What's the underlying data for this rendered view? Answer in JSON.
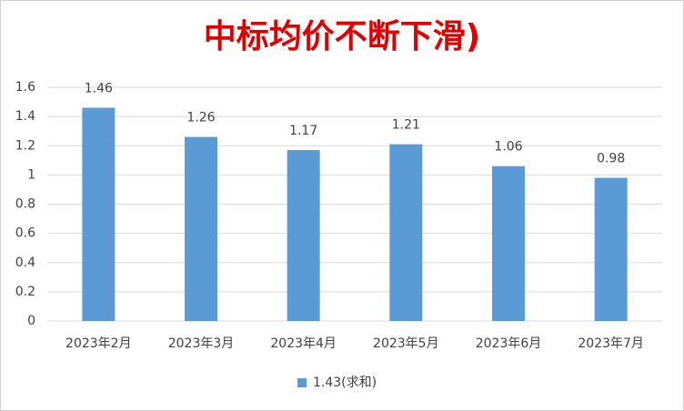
{
  "chart_data": {
    "type": "bar",
    "title": "中标均价不断下滑)",
    "categories": [
      "2023年2月",
      "2023年3月",
      "2023年4月",
      "2023年5月",
      "2023年6月",
      "2023年7月"
    ],
    "series": [
      {
        "name": "1.43(求和)",
        "color": "#5b9bd5",
        "values": [
          1.46,
          1.26,
          1.17,
          1.21,
          1.06,
          0.98
        ]
      }
    ],
    "ylim": [
      0,
      1.6
    ],
    "yticks": [
      0,
      0.2,
      0.4,
      0.6,
      0.8,
      1,
      1.2,
      1.4,
      1.6
    ],
    "grid": true,
    "legend": "bottom"
  }
}
